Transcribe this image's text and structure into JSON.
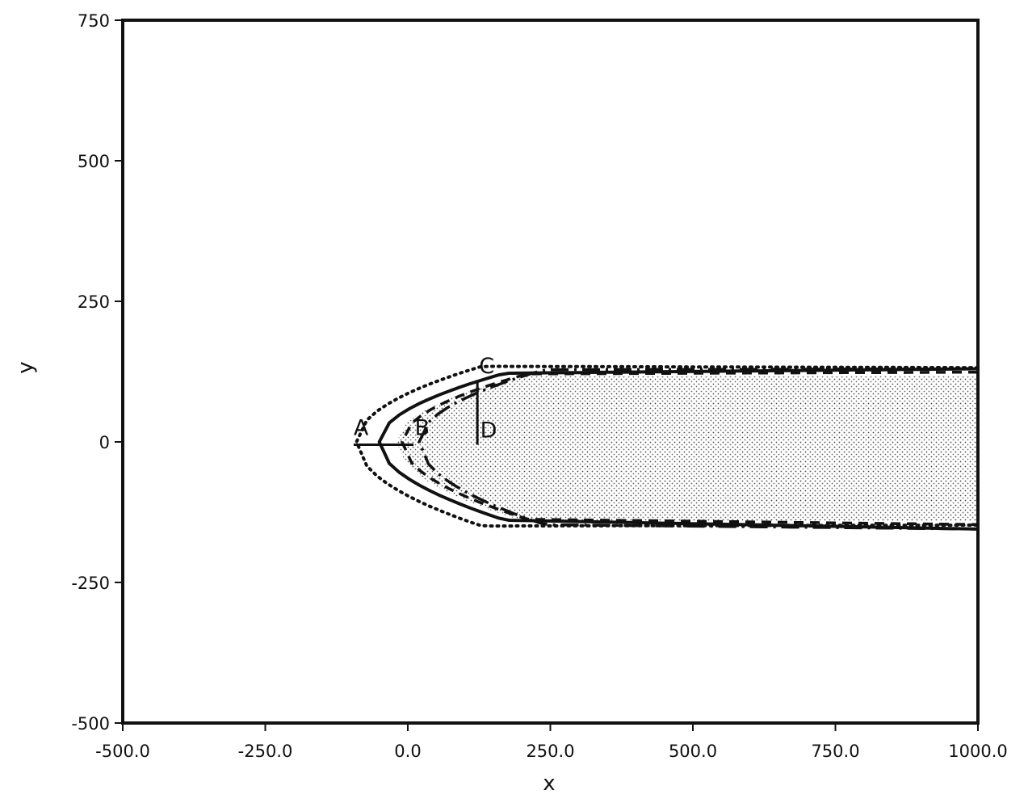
{
  "chart_data": {
    "type": "area",
    "title": "",
    "xlabel": "x",
    "ylabel": "y",
    "xlim": [
      -500,
      1000
    ],
    "ylim": [
      -500,
      750
    ],
    "x_ticks": [
      -500,
      -250,
      0,
      250,
      500,
      750,
      1000
    ],
    "x_tick_labels": [
      "-500.0",
      "-250.0",
      "0.0",
      "250.0",
      "500.0",
      "750.0",
      "1000.0"
    ],
    "y_ticks": [
      -500,
      -250,
      0,
      250,
      500,
      750
    ],
    "y_tick_labels": [
      "-500",
      "-250",
      "0",
      "250",
      "500",
      "750"
    ],
    "grid": false,
    "series": [
      {
        "style": "dotted",
        "nose_x": -90,
        "width_upper": 135,
        "width_lower": -150,
        "x_far": 1000,
        "y_far_upper": 132,
        "y_far_lower": -148
      },
      {
        "style": "solid",
        "nose_x": -50,
        "width_upper": 120,
        "width_lower": -135,
        "x_far": 1000,
        "y_far_upper": 130,
        "y_far_lower": -155
      },
      {
        "style": "dashed",
        "nose_x": -10,
        "width_upper": 120,
        "width_lower": -135,
        "x_far": 1000,
        "y_far_upper": 124,
        "y_far_lower": -147
      },
      {
        "style": "dash-dot",
        "nose_x": 20,
        "width_upper": 128,
        "width_lower": -145,
        "x_far": 1000,
        "y_far_upper": 130,
        "y_far_lower": -155
      }
    ],
    "shaded_region": {
      "nose_x": -20,
      "y_upper": 118,
      "y_lower": -140,
      "x_far": 1000
    },
    "annotations": [
      {
        "label": "A",
        "x": -95,
        "y": 12
      },
      {
        "label": "B",
        "x": 12,
        "y": 12
      },
      {
        "label": "C",
        "x": 125,
        "y": 122
      },
      {
        "label": "D",
        "x": 127,
        "y": 8
      }
    ],
    "reference_lines": [
      {
        "x1": -95,
        "y1": -5,
        "x2": 10,
        "y2": -5
      },
      {
        "x1": 122,
        "y1": 110,
        "x2": 122,
        "y2": -5
      }
    ]
  }
}
